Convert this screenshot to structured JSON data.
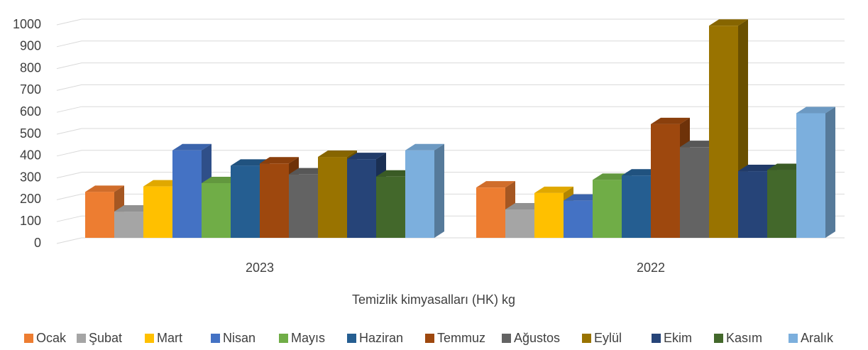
{
  "chart_data": {
    "type": "bar3d",
    "categories": [
      "2023",
      "2022"
    ],
    "x_label": "Temizlik kimyasalları (HK) kg",
    "series": [
      {
        "name": "Ocak",
        "color": "#ed7d31",
        "values": [
          210,
          230
        ]
      },
      {
        "name": "Şubat",
        "color": "#a5a5a5",
        "values": [
          120,
          130
        ]
      },
      {
        "name": "Mart",
        "color": "#ffc000",
        "values": [
          235,
          205
        ]
      },
      {
        "name": "Nisan",
        "color": "#4472c4",
        "values": [
          400,
          170
        ]
      },
      {
        "name": "Mayıs",
        "color": "#70ad47",
        "values": [
          250,
          265
        ]
      },
      {
        "name": "Haziran",
        "color": "#255e91",
        "values": [
          330,
          285
        ]
      },
      {
        "name": "Temmuz",
        "color": "#9e480e",
        "values": [
          340,
          520
        ]
      },
      {
        "name": "Ağustos",
        "color": "#636363",
        "values": [
          290,
          415
        ]
      },
      {
        "name": "Eylül",
        "color": "#997300",
        "values": [
          370,
          970
        ]
      },
      {
        "name": "Ekim",
        "color": "#264478",
        "values": [
          360,
          305
        ]
      },
      {
        "name": "Kasım",
        "color": "#43682b",
        "values": [
          280,
          310
        ]
      },
      {
        "name": "Aralık",
        "color": "#7cafdd",
        "values": [
          400,
          570
        ]
      }
    ],
    "ylim": [
      0,
      1000
    ],
    "yticks": [
      0,
      100,
      200,
      300,
      400,
      500,
      600,
      700,
      800,
      900,
      1000
    ],
    "grid": true,
    "legend": "bottom"
  }
}
